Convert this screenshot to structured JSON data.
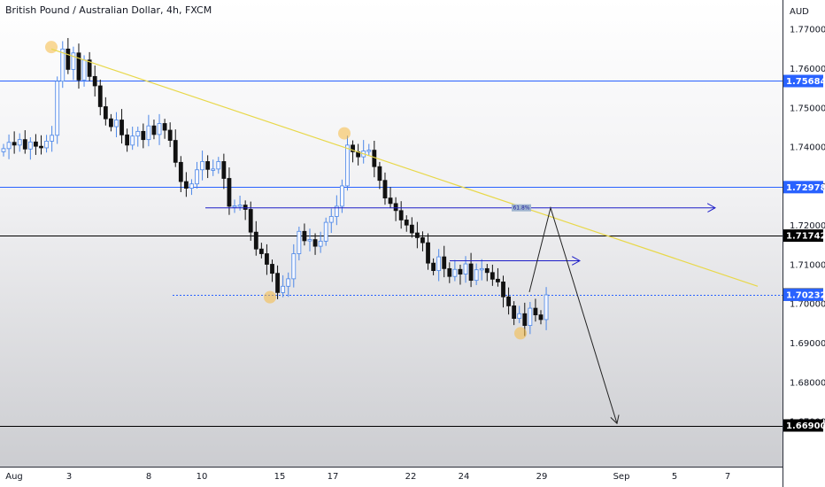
{
  "chart_data": {
    "type": "candlestick",
    "title": "British Pound / Australian Dollar, 4h, FXCM",
    "currency": "AUD",
    "ylim": [
      1.6585,
      1.7775
    ],
    "y_ticks": [
      "1.77000",
      "1.76000",
      "1.75000",
      "1.74000",
      "1.73000",
      "1.72000",
      "1.71000",
      "1.70000",
      "1.69000",
      "1.68000",
      "1.67000"
    ],
    "x_ticks": [
      "Aug",
      "3",
      "8",
      "10",
      "15",
      "17",
      "22",
      "24",
      "29",
      "Sep",
      "5",
      "7"
    ],
    "price_tags": [
      {
        "label": "1.75684",
        "value": 1.75684,
        "color": "#2962ff"
      },
      {
        "label": "1.72978",
        "value": 1.72978,
        "color": "#2962ff"
      },
      {
        "label": "1.71742",
        "value": 1.71742,
        "color": "#000000"
      },
      {
        "label": "1.70240",
        "value": 1.7024,
        "color": "#000000"
      },
      {
        "label": "1.70232",
        "value": 1.70232,
        "color": "#2962ff"
      },
      {
        "label": "1.66900",
        "value": 1.669,
        "color": "#000000"
      }
    ],
    "annotations": [
      {
        "label": "61.8%",
        "value": 1.7245
      }
    ],
    "candles_close": [
      1.7396,
      1.7412,
      1.7405,
      1.7419,
      1.7395,
      1.7413,
      1.7402,
      1.7398,
      1.7415,
      1.743,
      1.7568,
      1.765,
      1.7598,
      1.764,
      1.7571,
      1.7622,
      1.758,
      1.7556,
      1.7503,
      1.7472,
      1.7452,
      1.7469,
      1.7431,
      1.7405,
      1.7428,
      1.744,
      1.7419,
      1.7454,
      1.7432,
      1.746,
      1.7443,
      1.7417,
      1.7361,
      1.7312,
      1.7295,
      1.7306,
      1.7342,
      1.7363,
      1.7343,
      1.7344,
      1.7363,
      1.732,
      1.7249,
      1.725,
      1.7252,
      1.7241,
      1.7183,
      1.714,
      1.7128,
      1.7101,
      1.7078,
      1.7029,
      1.7045,
      1.7064,
      1.7128,
      1.7185,
      1.7161,
      1.7164,
      1.7147,
      1.716,
      1.7208,
      1.7223,
      1.7249,
      1.7301,
      1.7405,
      1.7388,
      1.7375,
      1.739,
      1.7392,
      1.735,
      1.7315,
      1.727,
      1.7256,
      1.7238,
      1.7214,
      1.7201,
      1.7181,
      1.7169,
      1.7156,
      1.7104,
      1.7085,
      1.712,
      1.709,
      1.707,
      1.7088,
      1.7076,
      1.7102,
      1.706,
      1.7087,
      1.709,
      1.708,
      1.7063,
      1.7056,
      1.7018,
      1.6995,
      1.6963,
      1.6975,
      1.6945,
      1.6989,
      1.6972,
      1.696,
      1.7023
    ]
  }
}
